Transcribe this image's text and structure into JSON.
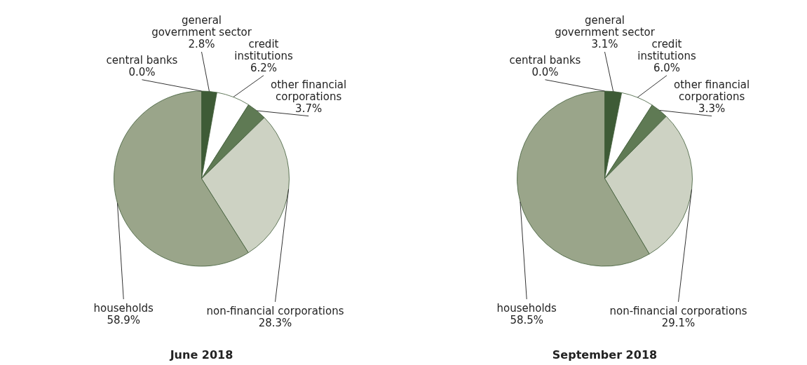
{
  "chart_data": [
    {
      "type": "pie",
      "title": "June 2018",
      "categories": [
        "central banks",
        "general government sector",
        "credit institutions",
        "other financial corporations",
        "non-financial corporations",
        "households"
      ],
      "values": [
        0.0,
        2.8,
        6.2,
        3.7,
        28.3,
        58.9
      ],
      "colors": [
        "#2f4a2a",
        "#3e5b36",
        "#ffffff",
        "#5f7a54",
        "#cdd2c3",
        "#9aa58a"
      ],
      "value_labels": [
        "0.0%",
        "2.8%",
        "6.2%",
        "3.7%",
        "28.3%",
        "58.9%"
      ]
    },
    {
      "type": "pie",
      "title": "September 2018",
      "categories": [
        "central banks",
        "general government sector",
        "credit institutions",
        "other financial corporations",
        "non-financial corporations",
        "households"
      ],
      "values": [
        0.0,
        3.1,
        6.0,
        3.3,
        29.1,
        58.5
      ],
      "colors": [
        "#2f4a2a",
        "#3e5b36",
        "#ffffff",
        "#5f7a54",
        "#cdd2c3",
        "#9aa58a"
      ],
      "value_labels": [
        "0.0%",
        "3.1%",
        "6.0%",
        "3.3%",
        "29.1%",
        "58.5%"
      ]
    }
  ]
}
